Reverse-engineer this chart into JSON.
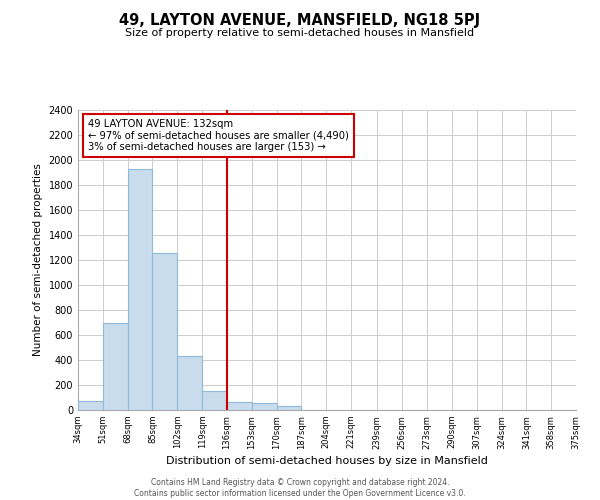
{
  "title": "49, LAYTON AVENUE, MANSFIELD, NG18 5PJ",
  "subtitle": "Size of property relative to semi-detached houses in Mansfield",
  "xlabel": "Distribution of semi-detached houses by size in Mansfield",
  "ylabel": "Number of semi-detached properties",
  "bin_edges": [
    34,
    51,
    68,
    85,
    102,
    119,
    136,
    153,
    170,
    187,
    204,
    221,
    239,
    256,
    273,
    290,
    307,
    324,
    341,
    358,
    375
  ],
  "bin_heights": [
    70,
    700,
    1930,
    1260,
    430,
    150,
    65,
    55,
    35,
    0,
    0,
    0,
    0,
    0,
    0,
    0,
    0,
    0,
    0,
    0
  ],
  "bar_color": "#c8dcee",
  "bar_edge_color": "#90b8d8",
  "property_line_x": 136,
  "property_line_color": "#cc0000",
  "annotation_title": "49 LAYTON AVENUE: 132sqm",
  "annotation_line1": "← 97% of semi-detached houses are smaller (4,490)",
  "annotation_line2": "3% of semi-detached houses are larger (153) →",
  "annotation_box_color": "#ffffff",
  "annotation_box_edge": "#cc0000",
  "xlim_left": 34,
  "xlim_right": 375,
  "ylim_top": 2400,
  "tick_labels": [
    "34sqm",
    "51sqm",
    "68sqm",
    "85sqm",
    "102sqm",
    "119sqm",
    "136sqm",
    "153sqm",
    "170sqm",
    "187sqm",
    "204sqm",
    "221sqm",
    "239sqm",
    "256sqm",
    "273sqm",
    "290sqm",
    "307sqm",
    "324sqm",
    "341sqm",
    "358sqm",
    "375sqm"
  ],
  "yticks": [
    0,
    200,
    400,
    600,
    800,
    1000,
    1200,
    1400,
    1600,
    1800,
    2000,
    2200,
    2400
  ],
  "footer_line1": "Contains HM Land Registry data © Crown copyright and database right 2024.",
  "footer_line2": "Contains public sector information licensed under the Open Government Licence v3.0.",
  "background_color": "#ffffff",
  "grid_color": "#cccccc"
}
